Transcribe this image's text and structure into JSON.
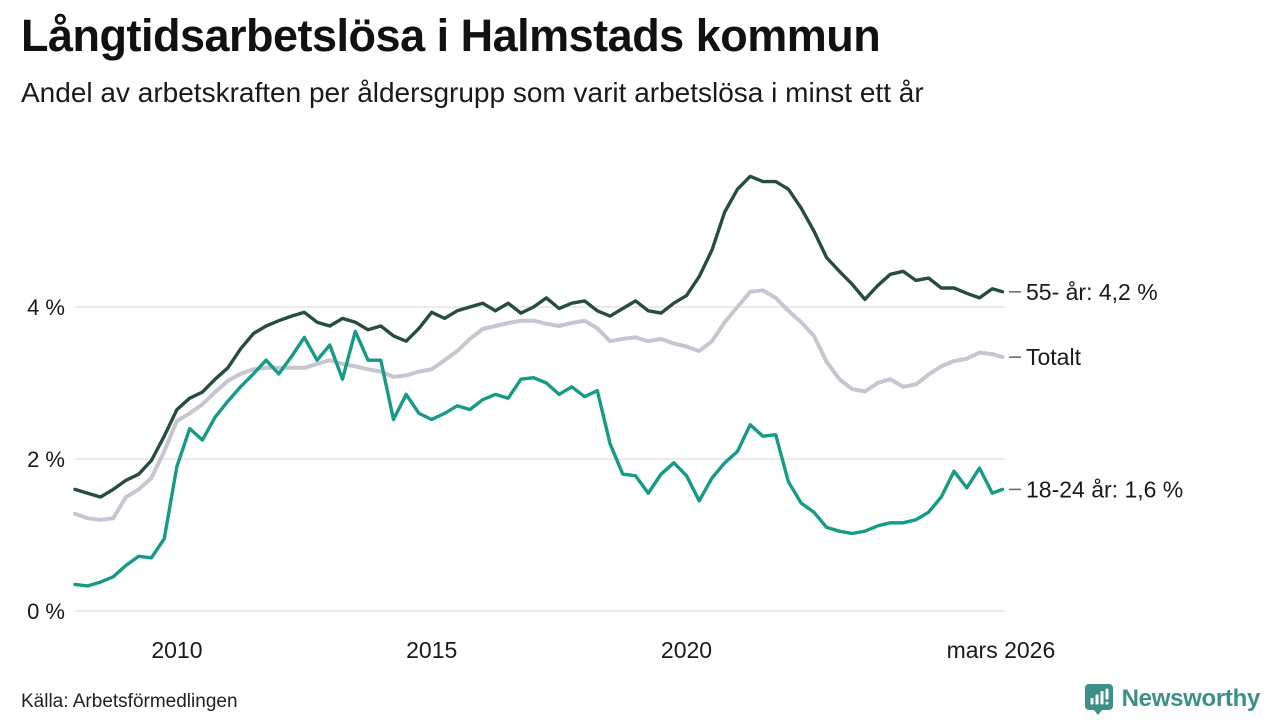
{
  "header": {
    "title": "Långtidsarbetslösa i Halmstads kommun",
    "subtitle": "Andel av arbetskraften per åldersgrupp som varit arbetslösa i minst ett år"
  },
  "chart_data": {
    "type": "line",
    "title": "Långtidsarbetslösa i Halmstads kommun",
    "subtitle": "Andel av arbetskraften per åldersgrupp som varit arbetslösa i minst ett år",
    "xlabel": "",
    "ylabel": "",
    "y_unit": "%",
    "xlim": [
      2008.0,
      2026.25
    ],
    "ylim": [
      0,
      6
    ],
    "grid": "horizontal",
    "legend_position": "line-end-labels-right",
    "yticks": [
      {
        "value": 0,
        "label": "0 %"
      },
      {
        "value": 2,
        "label": "2 %"
      },
      {
        "value": 4,
        "label": "4 %"
      }
    ],
    "xticks": [
      {
        "value": 2010,
        "label": "2010"
      },
      {
        "value": 2015,
        "label": "2015"
      },
      {
        "value": 2020,
        "label": "2020"
      },
      {
        "value": 2026.17,
        "label": "mars 2026"
      }
    ],
    "series": [
      {
        "name": "Totalt",
        "annotation": "Totalt",
        "color": "#c5c6d0",
        "stroke_width": 4,
        "points": [
          [
            2008.0,
            1.28
          ],
          [
            2008.25,
            1.22
          ],
          [
            2008.5,
            1.2
          ],
          [
            2008.75,
            1.22
          ],
          [
            2009.0,
            1.5
          ],
          [
            2009.25,
            1.6
          ],
          [
            2009.5,
            1.75
          ],
          [
            2009.75,
            2.1
          ],
          [
            2010.0,
            2.5
          ],
          [
            2010.25,
            2.6
          ],
          [
            2010.5,
            2.72
          ],
          [
            2010.75,
            2.88
          ],
          [
            2011.0,
            3.03
          ],
          [
            2011.25,
            3.12
          ],
          [
            2011.5,
            3.18
          ],
          [
            2011.75,
            3.2
          ],
          [
            2012.0,
            3.2
          ],
          [
            2012.25,
            3.2
          ],
          [
            2012.5,
            3.2
          ],
          [
            2012.75,
            3.25
          ],
          [
            2013.0,
            3.3
          ],
          [
            2013.25,
            3.25
          ],
          [
            2013.5,
            3.22
          ],
          [
            2013.75,
            3.18
          ],
          [
            2014.0,
            3.15
          ],
          [
            2014.25,
            3.08
          ],
          [
            2014.5,
            3.1
          ],
          [
            2014.75,
            3.15
          ],
          [
            2015.0,
            3.18
          ],
          [
            2015.25,
            3.3
          ],
          [
            2015.5,
            3.42
          ],
          [
            2015.75,
            3.58
          ],
          [
            2016.0,
            3.71
          ],
          [
            2016.25,
            3.75
          ],
          [
            2016.5,
            3.79
          ],
          [
            2016.75,
            3.82
          ],
          [
            2017.0,
            3.82
          ],
          [
            2017.25,
            3.78
          ],
          [
            2017.5,
            3.75
          ],
          [
            2017.75,
            3.79
          ],
          [
            2018.0,
            3.82
          ],
          [
            2018.25,
            3.72
          ],
          [
            2018.5,
            3.55
          ],
          [
            2018.75,
            3.58
          ],
          [
            2019.0,
            3.6
          ],
          [
            2019.25,
            3.55
          ],
          [
            2019.5,
            3.58
          ],
          [
            2019.75,
            3.52
          ],
          [
            2020.0,
            3.48
          ],
          [
            2020.25,
            3.42
          ],
          [
            2020.5,
            3.55
          ],
          [
            2020.75,
            3.8
          ],
          [
            2021.0,
            4.0
          ],
          [
            2021.25,
            4.2
          ],
          [
            2021.5,
            4.22
          ],
          [
            2021.75,
            4.12
          ],
          [
            2022.0,
            3.95
          ],
          [
            2022.25,
            3.8
          ],
          [
            2022.5,
            3.62
          ],
          [
            2022.75,
            3.28
          ],
          [
            2023.0,
            3.05
          ],
          [
            2023.25,
            2.92
          ],
          [
            2023.5,
            2.89
          ],
          [
            2023.75,
            3.0
          ],
          [
            2024.0,
            3.05
          ],
          [
            2024.25,
            2.95
          ],
          [
            2024.5,
            2.98
          ],
          [
            2024.75,
            3.11
          ],
          [
            2025.0,
            3.22
          ],
          [
            2025.25,
            3.29
          ],
          [
            2025.5,
            3.32
          ],
          [
            2025.75,
            3.4
          ],
          [
            2026.0,
            3.38
          ],
          [
            2026.2,
            3.34
          ]
        ]
      },
      {
        "name": "55- år",
        "annotation": "55- år: 4,2 %",
        "color": "#264d42",
        "stroke_width": 3.4,
        "points": [
          [
            2008.0,
            1.6
          ],
          [
            2008.25,
            1.55
          ],
          [
            2008.5,
            1.5
          ],
          [
            2008.75,
            1.6
          ],
          [
            2009.0,
            1.72
          ],
          [
            2009.25,
            1.8
          ],
          [
            2009.5,
            1.98
          ],
          [
            2009.75,
            2.3
          ],
          [
            2010.0,
            2.65
          ],
          [
            2010.25,
            2.8
          ],
          [
            2010.5,
            2.88
          ],
          [
            2010.75,
            3.05
          ],
          [
            2011.0,
            3.2
          ],
          [
            2011.25,
            3.45
          ],
          [
            2011.5,
            3.65
          ],
          [
            2011.75,
            3.75
          ],
          [
            2012.0,
            3.82
          ],
          [
            2012.25,
            3.88
          ],
          [
            2012.5,
            3.93
          ],
          [
            2012.75,
            3.8
          ],
          [
            2013.0,
            3.75
          ],
          [
            2013.25,
            3.85
          ],
          [
            2013.5,
            3.8
          ],
          [
            2013.75,
            3.7
          ],
          [
            2014.0,
            3.75
          ],
          [
            2014.25,
            3.62
          ],
          [
            2014.5,
            3.55
          ],
          [
            2014.75,
            3.72
          ],
          [
            2015.0,
            3.93
          ],
          [
            2015.25,
            3.85
          ],
          [
            2015.5,
            3.95
          ],
          [
            2015.75,
            4.0
          ],
          [
            2016.0,
            4.05
          ],
          [
            2016.25,
            3.95
          ],
          [
            2016.5,
            4.05
          ],
          [
            2016.75,
            3.92
          ],
          [
            2017.0,
            4.0
          ],
          [
            2017.25,
            4.12
          ],
          [
            2017.5,
            3.98
          ],
          [
            2017.75,
            4.05
          ],
          [
            2018.0,
            4.08
          ],
          [
            2018.25,
            3.95
          ],
          [
            2018.5,
            3.88
          ],
          [
            2018.75,
            3.98
          ],
          [
            2019.0,
            4.08
          ],
          [
            2019.25,
            3.95
          ],
          [
            2019.5,
            3.92
          ],
          [
            2019.75,
            4.05
          ],
          [
            2020.0,
            4.15
          ],
          [
            2020.25,
            4.4
          ],
          [
            2020.5,
            4.75
          ],
          [
            2020.75,
            5.25
          ],
          [
            2021.0,
            5.55
          ],
          [
            2021.25,
            5.72
          ],
          [
            2021.5,
            5.65
          ],
          [
            2021.75,
            5.65
          ],
          [
            2022.0,
            5.55
          ],
          [
            2022.25,
            5.3
          ],
          [
            2022.5,
            5.0
          ],
          [
            2022.75,
            4.65
          ],
          [
            2023.0,
            4.47
          ],
          [
            2023.25,
            4.3
          ],
          [
            2023.5,
            4.1
          ],
          [
            2023.75,
            4.28
          ],
          [
            2024.0,
            4.43
          ],
          [
            2024.25,
            4.47
          ],
          [
            2024.5,
            4.35
          ],
          [
            2024.75,
            4.38
          ],
          [
            2025.0,
            4.25
          ],
          [
            2025.25,
            4.25
          ],
          [
            2025.5,
            4.18
          ],
          [
            2025.75,
            4.12
          ],
          [
            2026.0,
            4.24
          ],
          [
            2026.2,
            4.2
          ]
        ]
      },
      {
        "name": "18-24 år",
        "annotation": "18-24 år: 1,6 %",
        "color": "#169b87",
        "stroke_width": 3.4,
        "points": [
          [
            2008.0,
            0.35
          ],
          [
            2008.25,
            0.33
          ],
          [
            2008.5,
            0.38
          ],
          [
            2008.75,
            0.45
          ],
          [
            2009.0,
            0.6
          ],
          [
            2009.25,
            0.72
          ],
          [
            2009.5,
            0.7
          ],
          [
            2009.75,
            0.95
          ],
          [
            2010.0,
            1.9
          ],
          [
            2010.25,
            2.4
          ],
          [
            2010.5,
            2.25
          ],
          [
            2010.75,
            2.55
          ],
          [
            2011.0,
            2.76
          ],
          [
            2011.25,
            2.95
          ],
          [
            2011.5,
            3.12
          ],
          [
            2011.75,
            3.3
          ],
          [
            2012.0,
            3.12
          ],
          [
            2012.25,
            3.35
          ],
          [
            2012.5,
            3.6
          ],
          [
            2012.75,
            3.3
          ],
          [
            2013.0,
            3.5
          ],
          [
            2013.25,
            3.05
          ],
          [
            2013.5,
            3.68
          ],
          [
            2013.75,
            3.3
          ],
          [
            2014.0,
            3.3
          ],
          [
            2014.25,
            2.52
          ],
          [
            2014.5,
            2.85
          ],
          [
            2014.75,
            2.6
          ],
          [
            2015.0,
            2.52
          ],
          [
            2015.25,
            2.6
          ],
          [
            2015.5,
            2.7
          ],
          [
            2015.75,
            2.65
          ],
          [
            2016.0,
            2.78
          ],
          [
            2016.25,
            2.85
          ],
          [
            2016.5,
            2.8
          ],
          [
            2016.75,
            3.05
          ],
          [
            2017.0,
            3.07
          ],
          [
            2017.25,
            3.0
          ],
          [
            2017.5,
            2.85
          ],
          [
            2017.75,
            2.95
          ],
          [
            2018.0,
            2.82
          ],
          [
            2018.25,
            2.9
          ],
          [
            2018.5,
            2.2
          ],
          [
            2018.75,
            1.8
          ],
          [
            2019.0,
            1.78
          ],
          [
            2019.25,
            1.55
          ],
          [
            2019.5,
            1.8
          ],
          [
            2019.75,
            1.95
          ],
          [
            2020.0,
            1.78
          ],
          [
            2020.25,
            1.45
          ],
          [
            2020.5,
            1.75
          ],
          [
            2020.75,
            1.95
          ],
          [
            2021.0,
            2.1
          ],
          [
            2021.25,
            2.45
          ],
          [
            2021.5,
            2.3
          ],
          [
            2021.75,
            2.32
          ],
          [
            2022.0,
            1.7
          ],
          [
            2022.25,
            1.42
          ],
          [
            2022.5,
            1.3
          ],
          [
            2022.75,
            1.1
          ],
          [
            2023.0,
            1.05
          ],
          [
            2023.25,
            1.02
          ],
          [
            2023.5,
            1.05
          ],
          [
            2023.75,
            1.12
          ],
          [
            2024.0,
            1.16
          ],
          [
            2024.25,
            1.16
          ],
          [
            2024.5,
            1.2
          ],
          [
            2024.75,
            1.3
          ],
          [
            2025.0,
            1.5
          ],
          [
            2025.25,
            1.84
          ],
          [
            2025.5,
            1.62
          ],
          [
            2025.75,
            1.88
          ],
          [
            2026.0,
            1.55
          ],
          [
            2026.2,
            1.6
          ]
        ]
      }
    ]
  },
  "footer": {
    "source": "Källa: Arbetsförmedlingen",
    "brand_name": "Newsworthy",
    "brand_color": "#3b9187"
  }
}
